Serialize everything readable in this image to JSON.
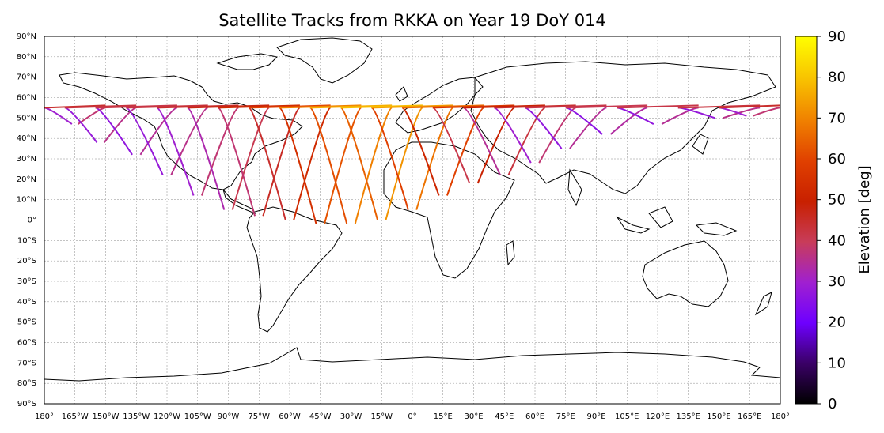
{
  "title": "Satellite Tracks from RKKA on Year 19 DoY 014",
  "lat_labels": [
    "90°N",
    "80°N",
    "70°N",
    "60°N",
    "50°N",
    "40°N",
    "30°N",
    "20°N",
    "10°N",
    "0°",
    "10°S",
    "20°S",
    "30°S",
    "40°S",
    "50°S",
    "60°S",
    "70°S",
    "80°S",
    "90°S"
  ],
  "lon_labels": [
    "180°",
    "165°W",
    "150°W",
    "135°W",
    "120°W",
    "105°W",
    "90°W",
    "75°W",
    "60°W",
    "45°W",
    "30°W",
    "15°W",
    "0°",
    "15°E",
    "30°E",
    "45°E",
    "60°E",
    "75°E",
    "90°E",
    "105°E",
    "120°E",
    "135°E",
    "150°E",
    "165°E",
    "180°"
  ],
  "colorbar": {
    "label": "Elevation [deg]",
    "ticks": [
      "0",
      "10",
      "20",
      "30",
      "40",
      "50",
      "60",
      "70",
      "80",
      "90"
    ],
    "range": [
      0,
      90
    ],
    "colormap": "gnuplot",
    "colors": [
      "#000000",
      "#3a0066",
      "#6e00ff",
      "#a020d0",
      "#c83c5a",
      "#c82000",
      "#e04000",
      "#f08000",
      "#f8c000",
      "#ffff00"
    ]
  },
  "chart_data": {
    "type": "map",
    "projection": "plate-carree",
    "lon_range": [
      -180,
      180
    ],
    "lat_range": [
      -90,
      90
    ],
    "grid": true,
    "station": "RKKA",
    "year": 19,
    "doy": "014",
    "tracks": [
      {
        "lon_start": -180,
        "lon_end": -150,
        "lat_top": 55,
        "lat_bottom": 47,
        "elev": 30
      },
      {
        "lon_start": -170,
        "lon_end": -135,
        "lat_top": 55,
        "lat_bottom": 38,
        "elev": 28
      },
      {
        "lon_start": -155,
        "lon_end": -115,
        "lat_top": 55,
        "lat_bottom": 32,
        "elev": 27
      },
      {
        "lon_start": -140,
        "lon_end": -100,
        "lat_top": 55,
        "lat_bottom": 22,
        "elev": 28
      },
      {
        "lon_start": -125,
        "lon_end": -85,
        "lat_top": 55,
        "lat_bottom": 12,
        "elev": 30
      },
      {
        "lon_start": -110,
        "lon_end": -70,
        "lat_top": 55,
        "lat_bottom": 5,
        "elev": 33
      },
      {
        "lon_start": -95,
        "lon_end": -55,
        "lat_top": 55,
        "lat_bottom": 2,
        "elev": 38
      },
      {
        "lon_start": -80,
        "lon_end": -40,
        "lat_top": 55,
        "lat_bottom": 0,
        "elev": 45
      },
      {
        "lon_start": -65,
        "lon_end": -25,
        "lat_top": 55,
        "lat_bottom": -2,
        "elev": 55
      },
      {
        "lon_start": -50,
        "lon_end": -10,
        "lat_top": 55,
        "lat_bottom": -2,
        "elev": 62
      },
      {
        "lon_start": -35,
        "lon_end": 5,
        "lat_top": 55,
        "lat_bottom": 0,
        "elev": 65
      },
      {
        "lon_start": -20,
        "lon_end": 20,
        "lat_top": 55,
        "lat_bottom": 5,
        "elev": 60
      },
      {
        "lon_start": -5,
        "lon_end": 35,
        "lat_top": 55,
        "lat_bottom": 12,
        "elev": 52
      },
      {
        "lon_start": 10,
        "lon_end": 50,
        "lat_top": 55,
        "lat_bottom": 18,
        "elev": 42
      },
      {
        "lon_start": 25,
        "lon_end": 65,
        "lat_top": 55,
        "lat_bottom": 22,
        "elev": 35
      },
      {
        "lon_start": 40,
        "lon_end": 80,
        "lat_top": 55,
        "lat_bottom": 28,
        "elev": 30
      },
      {
        "lon_start": 55,
        "lon_end": 95,
        "lat_top": 55,
        "lat_bottom": 35,
        "elev": 27
      },
      {
        "lon_start": 75,
        "lon_end": 115,
        "lat_top": 55,
        "lat_bottom": 42,
        "elev": 26
      },
      {
        "lon_start": 100,
        "lon_end": 140,
        "lat_top": 55,
        "lat_bottom": 47,
        "elev": 27
      },
      {
        "lon_start": 130,
        "lon_end": 170,
        "lat_top": 55,
        "lat_bottom": 50,
        "elev": 28
      },
      {
        "lon_start": 150,
        "lon_end": 180,
        "lat_top": 55,
        "lat_bottom": 51,
        "elev": 30
      }
    ]
  }
}
